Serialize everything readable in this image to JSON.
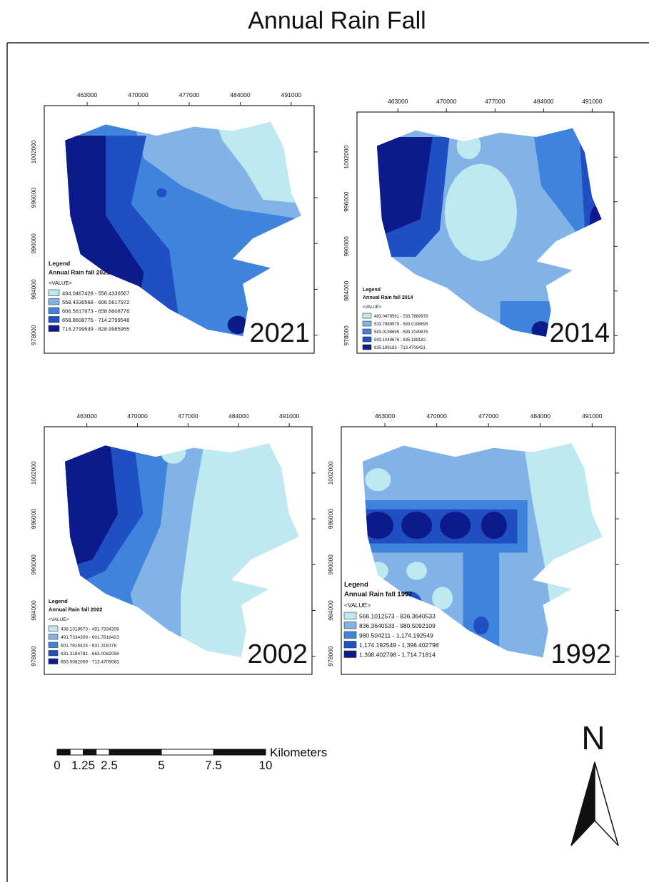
{
  "title": "Annual Rain Fall",
  "maps": [
    {
      "year": "2021",
      "legend_title": "Legend",
      "legend_subtitle": "Annual Rain fall 2021",
      "value_label": "<VALUE>",
      "classes": [
        "494.0467428 - 558.4336567",
        "558.4336568 - 606.5617972",
        "606.5617973 - 658.8608776",
        "658.8608776 - 714.2799548",
        "714.2799549 - 828.9985955"
      ],
      "x_ticks": [
        463000,
        470000,
        477000,
        484000,
        491000
      ],
      "y_ticks": [
        1002000,
        996000,
        990000,
        984000,
        978000
      ]
    },
    {
      "year": "2014",
      "legend_title": "Legend",
      "legend_subtitle": "Annual Rain fall 2014",
      "value_label": "<VALUE>",
      "classes": [
        "483.0478561 - 533.7889978",
        "533.7889979 - 583.0198695",
        "583.0198695 - 593.1049675",
        "593.1049676 - 635.189182",
        "635.189183 - 713.4709421"
      ],
      "x_ticks": [
        463000,
        470000,
        477000,
        484000,
        491000
      ],
      "y_ticks": [
        1002000,
        996000,
        990000,
        984000,
        978000
      ]
    },
    {
      "year": "2002",
      "legend_title": "Legend",
      "legend_subtitle": "Annual Rain fall 2002",
      "value_label": "<VALUE>",
      "classes": [
        "438.1318673 - 491.7334308",
        "491.7334309 - 601.7816423",
        "601.7816424 - 631.318178",
        "631.3184781 - 663.0082058",
        "663.0082059 - 713.4709063"
      ],
      "x_ticks": [
        463000,
        470000,
        477000,
        484000,
        491000
      ],
      "y_ticks": [
        1002000,
        996000,
        990000,
        984000,
        978000
      ]
    },
    {
      "year": "1992",
      "legend_title": "Legend",
      "legend_subtitle": "Annual Rain fall 1992",
      "value_label": "<VALUE>",
      "classes": [
        "566.1012573 - 836.3640533",
        "836.3640533 - 980.5092109",
        "980.504211 - 1,174.192549",
        "1,174.192549 - 1,398.402798",
        "1,398.402798 - 1,714.71814"
      ],
      "x_ticks": [
        463000,
        470000,
        477000,
        484000,
        491000
      ],
      "y_ticks": [
        1002000,
        996000,
        990000,
        984000,
        978000
      ]
    }
  ],
  "scale_bar": {
    "unit": "Kilometers",
    "ticks": [
      0,
      1.25,
      2.5,
      5,
      7.5,
      10
    ]
  },
  "north": "N"
}
